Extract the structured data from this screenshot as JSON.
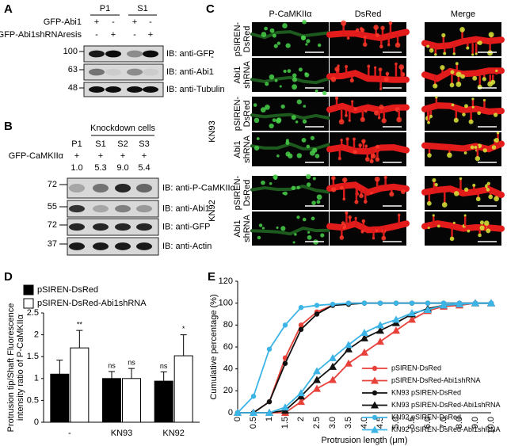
{
  "panel_a": {
    "panel_label": "A",
    "columns": [
      "P1",
      "S1"
    ],
    "rows": [
      {
        "name": "GFP-Abi1",
        "signs": [
          "+",
          "-",
          "+",
          "-"
        ]
      },
      {
        "name": "GFP-Abi1shRNAresis",
        "signs": [
          "-",
          "+",
          "-",
          "+"
        ]
      }
    ],
    "blots": [
      {
        "marker": 100,
        "label": "IB: anti-GFP"
      },
      {
        "marker": 63,
        "label": "IB: anti-Abi1"
      },
      {
        "marker": 48,
        "label": "IB: anti-Tubulin"
      }
    ]
  },
  "panel_b": {
    "panel_label": "B",
    "group": "Knockdown cells",
    "columns": [
      "P1",
      "S1",
      "S2",
      "S3"
    ],
    "rows": [
      {
        "name": "GFP-CaMKIIα",
        "signs": [
          "+",
          "+",
          "+",
          "+"
        ]
      }
    ],
    "ratios": [
      "1.0",
      "5.3",
      "9.0",
      "5.4"
    ],
    "blots": [
      {
        "marker": 72,
        "label": "IB: anti-P-CaMKIIα"
      },
      {
        "marker": 55,
        "label": "IB: anti-Abi1"
      },
      {
        "marker": 72,
        "label": "IB: anti-GFP"
      },
      {
        "marker": 37,
        "label": "IB: anti-Actin"
      }
    ]
  },
  "panel_c": {
    "panel_label": "C",
    "columns": [
      "P-CaMKIIα",
      "DsRed",
      "Merge"
    ],
    "groups": [
      {
        "name": "-",
        "rows": [
          [
            "pSIREN-",
            "DsRed"
          ],
          [
            "Abi1",
            "shRNA"
          ]
        ]
      },
      {
        "name": "KN93",
        "rows": [
          [
            "pSIREN-",
            "DsRed"
          ],
          [
            "Abi1",
            "shRNA"
          ]
        ]
      },
      {
        "name": "KN92",
        "rows": [
          [
            "pSIREN-",
            "DsRed"
          ],
          [
            "Abi1",
            "shRNA"
          ]
        ]
      }
    ]
  },
  "chart_data": [
    {
      "type": "bar",
      "panel_label": "D",
      "ylabel": [
        "Protrusion tip/Shaft Fluorescence",
        "intensity ratio of P-CaMKIIα"
      ],
      "categories": [
        "-",
        "KN93",
        "KN92"
      ],
      "series": [
        {
          "name": "pSIREN-DsRed",
          "color": "#000000",
          "values": [
            1.1,
            1.0,
            0.94
          ],
          "errors": [
            0.32,
            0.16,
            0.21
          ],
          "annotations": [
            null,
            "ns",
            "ns"
          ]
        },
        {
          "name": "pSIREN-DsRed-Abi1shRNA",
          "color": "#ffffff",
          "values": [
            1.7,
            1.0,
            1.52
          ],
          "errors": [
            0.4,
            0.23,
            0.48
          ],
          "annotations": [
            "**",
            "ns",
            "*"
          ]
        }
      ],
      "ylim": [
        0,
        2.5
      ],
      "yticks": [
        0,
        0.5,
        1,
        1.5,
        2,
        2.5
      ],
      "legend": "top-left"
    },
    {
      "type": "line",
      "panel_label": "E",
      "ylabel": "Cumulative percentage (%)",
      "xlabel": "Protrusion length (μm)",
      "categories": [
        "0",
        "0.5",
        "1",
        "1.5",
        "2",
        "2.5",
        "3.0",
        "3.5",
        "4.0",
        "4.5",
        "5.0",
        "5.5",
        "6.0",
        "7.0",
        "8.0",
        "9.0",
        "10.0"
      ],
      "series": [
        {
          "name": "pSIREN-DsRed",
          "color": "#e8413a",
          "marker": "circle",
          "values": [
            0,
            0,
            10,
            50,
            80,
            92,
            98,
            100,
            100,
            100,
            100,
            100,
            100,
            100,
            100,
            100,
            100
          ]
        },
        {
          "name": "pSIREN-DsRed-Abi1shRNA",
          "color": "#e8413a",
          "marker": "triangle",
          "values": [
            0,
            0,
            0,
            0,
            10,
            22,
            30,
            45,
            55,
            65,
            75,
            85,
            93,
            97,
            98,
            100,
            100
          ]
        },
        {
          "name": "KN93 pSIREN-DsRed",
          "color": "#111111",
          "marker": "circle",
          "values": [
            0,
            0,
            10,
            45,
            76,
            90,
            98,
            99,
            100,
            100,
            100,
            100,
            100,
            100,
            100,
            100,
            100
          ]
        },
        {
          "name": "KN93 pSIREN-DsRed-Abi1shRNA",
          "color": "#111111",
          "marker": "triangle",
          "values": [
            0,
            0,
            0,
            2,
            15,
            30,
            42,
            58,
            68,
            75,
            82,
            90,
            95,
            98,
            99,
            100,
            100
          ]
        },
        {
          "name": "KN92 pSIREN-DsRed",
          "color": "#3cb4e5",
          "marker": "circle",
          "values": [
            0,
            15,
            58,
            80,
            96,
            98,
            99,
            100,
            100,
            100,
            100,
            100,
            100,
            100,
            100,
            100,
            100
          ]
        },
        {
          "name": "KN92 pSIREN-DsRed-Abi1shRNA",
          "color": "#3cb4e5",
          "marker": "triangle",
          "values": [
            0,
            0,
            0,
            5,
            18,
            38,
            50,
            62,
            73,
            80,
            85,
            91,
            94,
            98,
            99,
            100,
            100
          ]
        }
      ],
      "ylim": [
        0,
        120
      ],
      "yticks": [
        0,
        20,
        40,
        60,
        80,
        100,
        120
      ],
      "legend": "bottom-right"
    }
  ]
}
